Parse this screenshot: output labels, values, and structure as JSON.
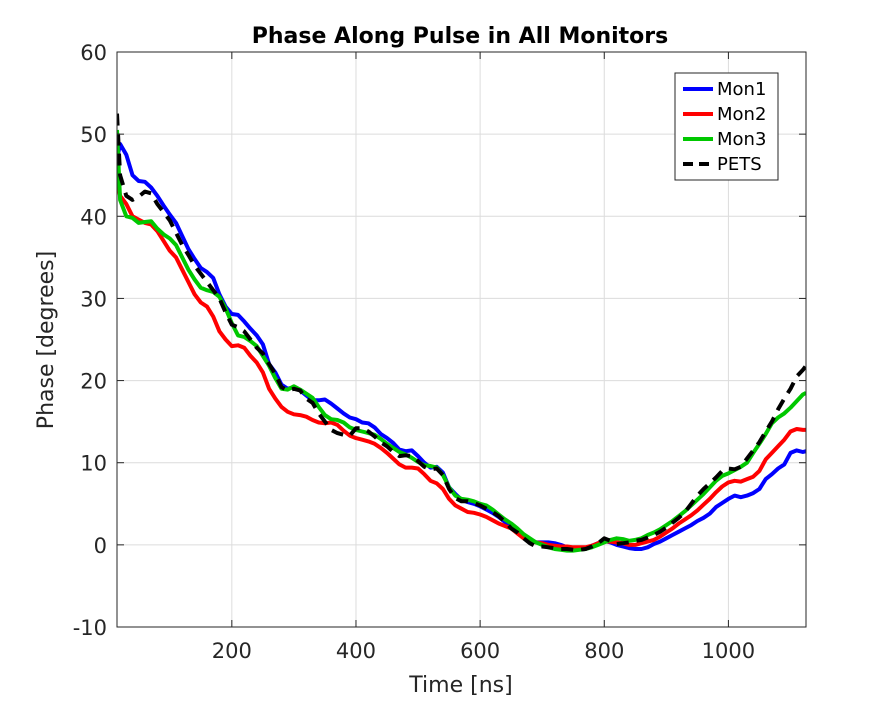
{
  "chart_data": {
    "type": "line",
    "title": "Phase Along Pulse in All Monitors",
    "xlabel": "Time [ns]",
    "ylabel": "Phase [degrees]",
    "xlim": [
      15,
      1125
    ],
    "ylim": [
      -10,
      60
    ],
    "xticks": [
      200,
      400,
      600,
      800,
      1000
    ],
    "yticks": [
      -10,
      0,
      10,
      20,
      30,
      40,
      50,
      60
    ],
    "grid": true,
    "legend_position": "top-right",
    "series": [
      {
        "name": "Mon1",
        "color": "#0000ff",
        "dash": "solid",
        "x": [
          15,
          20,
          30,
          40,
          50,
          60,
          70,
          80,
          90,
          100,
          110,
          120,
          130,
          140,
          150,
          160,
          170,
          180,
          190,
          200,
          210,
          220,
          230,
          240,
          250,
          260,
          270,
          280,
          290,
          300,
          310,
          320,
          330,
          340,
          350,
          360,
          370,
          380,
          390,
          400,
          410,
          420,
          430,
          440,
          450,
          460,
          470,
          480,
          490,
          500,
          510,
          520,
          530,
          540,
          550,
          560,
          570,
          580,
          590,
          600,
          610,
          620,
          630,
          640,
          650,
          660,
          670,
          680,
          690,
          700,
          710,
          720,
          730,
          740,
          750,
          760,
          770,
          780,
          790,
          800,
          810,
          820,
          830,
          840,
          850,
          860,
          870,
          880,
          890,
          900,
          910,
          920,
          930,
          940,
          950,
          960,
          970,
          980,
          990,
          1000,
          1010,
          1020,
          1030,
          1040,
          1050,
          1060,
          1070,
          1080,
          1090,
          1100,
          1110,
          1120,
          1125
        ],
        "y": [
          47.0,
          48.8,
          47.5,
          45.0,
          44.3,
          44.2,
          43.5,
          42.5,
          41.3,
          40.2,
          39.2,
          37.6,
          36.0,
          34.8,
          33.7,
          33.2,
          32.5,
          30.5,
          29.0,
          28.1,
          28.0,
          27.2,
          26.3,
          25.5,
          24.4,
          22.0,
          21.0,
          19.5,
          19.0,
          19.2,
          18.8,
          18.2,
          17.6,
          17.6,
          17.7,
          17.2,
          16.6,
          16.0,
          15.5,
          15.3,
          14.9,
          14.8,
          14.3,
          13.5,
          13.0,
          12.4,
          11.6,
          11.4,
          11.5,
          10.8,
          10.0,
          9.4,
          9.5,
          8.8,
          7.0,
          6.2,
          5.5,
          5.2,
          5.0,
          4.7,
          4.3,
          3.9,
          3.4,
          2.8,
          2.2,
          1.8,
          1.2,
          0.7,
          0.3,
          0.3,
          0.3,
          0.2,
          0.0,
          -0.3,
          -0.5,
          -0.5,
          -0.4,
          -0.1,
          0.2,
          0.5,
          0.3,
          0.0,
          -0.2,
          -0.4,
          -0.5,
          -0.5,
          -0.3,
          0.1,
          0.4,
          0.8,
          1.2,
          1.6,
          2.0,
          2.4,
          2.9,
          3.3,
          3.8,
          4.6,
          5.1,
          5.6,
          6.0,
          5.8,
          6.0,
          6.3,
          6.8,
          8.0,
          8.6,
          9.3,
          9.8,
          11.2,
          11.5,
          11.3,
          11.4
        ]
      },
      {
        "name": "Mon2",
        "color": "#ff0000",
        "dash": "solid",
        "x": [
          15,
          20,
          30,
          40,
          50,
          60,
          70,
          80,
          90,
          100,
          110,
          120,
          130,
          140,
          150,
          160,
          170,
          180,
          190,
          200,
          210,
          220,
          230,
          240,
          250,
          260,
          270,
          280,
          290,
          300,
          310,
          320,
          330,
          340,
          350,
          360,
          370,
          380,
          390,
          400,
          410,
          420,
          430,
          440,
          450,
          460,
          470,
          480,
          490,
          500,
          510,
          520,
          530,
          540,
          550,
          560,
          570,
          580,
          590,
          600,
          610,
          620,
          630,
          640,
          650,
          660,
          670,
          680,
          690,
          700,
          710,
          720,
          730,
          740,
          750,
          760,
          770,
          780,
          790,
          800,
          810,
          820,
          830,
          840,
          850,
          860,
          870,
          880,
          890,
          900,
          910,
          920,
          930,
          940,
          950,
          960,
          970,
          980,
          990,
          1000,
          1010,
          1020,
          1030,
          1040,
          1050,
          1060,
          1070,
          1080,
          1090,
          1100,
          1110,
          1120,
          1125
        ],
        "y": [
          44.5,
          42.5,
          41.5,
          40.0,
          39.6,
          39.2,
          39.0,
          38.2,
          37.0,
          35.8,
          35.0,
          33.5,
          32.0,
          30.5,
          29.5,
          29.0,
          27.8,
          26.0,
          25.0,
          24.2,
          24.3,
          24.0,
          23.0,
          22.2,
          21.0,
          19.0,
          17.8,
          16.8,
          16.2,
          15.9,
          15.8,
          15.6,
          15.2,
          14.9,
          14.8,
          14.9,
          14.6,
          13.9,
          13.3,
          13.0,
          12.8,
          12.6,
          12.3,
          11.8,
          11.2,
          10.5,
          9.8,
          9.4,
          9.4,
          9.3,
          8.6,
          7.8,
          7.5,
          6.8,
          5.6,
          4.8,
          4.4,
          4.0,
          3.9,
          3.7,
          3.4,
          3.0,
          2.6,
          2.3,
          2.0,
          1.4,
          0.8,
          0.5,
          0.3,
          0.2,
          0.0,
          -0.1,
          -0.2,
          -0.2,
          -0.3,
          -0.3,
          -0.3,
          -0.1,
          0.2,
          0.4,
          0.4,
          0.3,
          0.2,
          0.0,
          0.0,
          0.2,
          0.4,
          0.6,
          1.0,
          1.5,
          2.0,
          2.6,
          3.1,
          3.6,
          4.2,
          4.9,
          5.6,
          6.4,
          7.1,
          7.6,
          7.8,
          7.7,
          8.0,
          8.3,
          9.0,
          10.4,
          11.2,
          12.0,
          12.8,
          13.8,
          14.1,
          14.0,
          14.0
        ]
      },
      {
        "name": "Mon3",
        "color": "#00c800",
        "dash": "solid",
        "x": [
          15,
          20,
          30,
          40,
          50,
          60,
          70,
          80,
          90,
          100,
          110,
          120,
          130,
          140,
          150,
          160,
          170,
          180,
          190,
          200,
          210,
          220,
          230,
          240,
          250,
          260,
          270,
          280,
          290,
          300,
          310,
          320,
          330,
          340,
          350,
          360,
          370,
          380,
          390,
          400,
          410,
          420,
          430,
          440,
          450,
          460,
          470,
          480,
          490,
          500,
          510,
          520,
          530,
          540,
          550,
          560,
          570,
          580,
          590,
          600,
          610,
          620,
          630,
          640,
          650,
          660,
          670,
          680,
          690,
          700,
          710,
          720,
          730,
          740,
          750,
          760,
          770,
          780,
          790,
          800,
          810,
          820,
          830,
          840,
          850,
          860,
          870,
          880,
          890,
          900,
          910,
          920,
          930,
          940,
          950,
          960,
          970,
          980,
          990,
          1000,
          1010,
          1020,
          1030,
          1040,
          1050,
          1060,
          1070,
          1080,
          1090,
          1100,
          1110,
          1120,
          1125
        ],
        "y": [
          50.5,
          42.0,
          40.0,
          39.8,
          39.2,
          39.3,
          39.4,
          38.5,
          37.8,
          37.3,
          36.5,
          35.0,
          33.5,
          32.3,
          31.3,
          31.0,
          30.8,
          30.2,
          28.8,
          27.0,
          25.5,
          25.3,
          24.8,
          24.2,
          23.0,
          21.8,
          20.3,
          19.0,
          18.9,
          19.3,
          18.9,
          18.4,
          17.9,
          16.8,
          15.8,
          15.3,
          15.2,
          14.9,
          14.3,
          14.0,
          13.8,
          13.6,
          13.4,
          12.9,
          12.3,
          11.8,
          11.3,
          11.0,
          10.6,
          10.1,
          9.7,
          9.6,
          9.4,
          8.5,
          7.0,
          6.0,
          5.6,
          5.5,
          5.3,
          5.0,
          4.8,
          4.3,
          3.7,
          3.1,
          2.6,
          2.0,
          1.3,
          0.8,
          0.3,
          0.0,
          -0.3,
          -0.5,
          -0.6,
          -0.7,
          -0.7,
          -0.6,
          -0.5,
          -0.3,
          0.0,
          0.3,
          0.6,
          0.8,
          0.7,
          0.5,
          0.6,
          0.8,
          1.2,
          1.5,
          1.9,
          2.4,
          2.9,
          3.5,
          4.1,
          4.8,
          5.5,
          6.2,
          7.0,
          7.8,
          8.4,
          8.7,
          9.1,
          9.5,
          10.0,
          11.2,
          12.3,
          13.5,
          14.8,
          15.5,
          16.0,
          16.7,
          17.5,
          18.3,
          18.5
        ]
      },
      {
        "name": "PETS",
        "color": "#000000",
        "dash": "dashed",
        "x": [
          15,
          20,
          30,
          40,
          50,
          60,
          70,
          80,
          90,
          100,
          110,
          120,
          130,
          140,
          150,
          160,
          170,
          180,
          190,
          200,
          210,
          220,
          230,
          240,
          250,
          260,
          270,
          280,
          290,
          300,
          310,
          320,
          330,
          340,
          350,
          360,
          370,
          380,
          390,
          400,
          410,
          420,
          430,
          440,
          450,
          460,
          470,
          480,
          490,
          500,
          510,
          520,
          530,
          540,
          550,
          560,
          570,
          580,
          590,
          600,
          610,
          620,
          630,
          640,
          650,
          660,
          670,
          680,
          690,
          700,
          710,
          720,
          730,
          740,
          750,
          760,
          770,
          780,
          790,
          800,
          810,
          820,
          830,
          840,
          850,
          860,
          870,
          880,
          890,
          900,
          910,
          920,
          930,
          940,
          950,
          960,
          970,
          980,
          990,
          1000,
          1010,
          1020,
          1030,
          1040,
          1050,
          1060,
          1070,
          1080,
          1090,
          1100,
          1110,
          1120,
          1125
        ],
        "y": [
          52.5,
          45.0,
          42.5,
          42.0,
          42.4,
          43.0,
          42.8,
          41.5,
          40.5,
          39.5,
          38.0,
          36.5,
          35.3,
          34.0,
          33.0,
          32.0,
          31.0,
          30.0,
          28.3,
          26.8,
          26.5,
          26.0,
          25.0,
          24.0,
          23.3,
          22.0,
          20.8,
          19.2,
          18.8,
          19.0,
          18.8,
          17.8,
          17.3,
          16.0,
          15.0,
          14.0,
          13.6,
          13.4,
          13.3,
          14.2,
          14.2,
          13.8,
          13.2,
          12.5,
          12.0,
          11.3,
          10.8,
          10.9,
          10.8,
          10.2,
          9.5,
          9.2,
          9.3,
          8.5,
          6.8,
          5.7,
          5.3,
          5.3,
          5.1,
          4.8,
          4.4,
          4.0,
          3.5,
          2.8,
          2.0,
          1.5,
          0.8,
          0.2,
          -0.2,
          -0.2,
          -0.3,
          -0.4,
          -0.5,
          -0.5,
          -0.6,
          -0.6,
          -0.5,
          -0.2,
          0.2,
          0.8,
          0.5,
          0.1,
          0.2,
          0.3,
          0.5,
          0.6,
          0.9,
          1.2,
          1.6,
          2.1,
          2.7,
          3.3,
          4.0,
          5.0,
          6.0,
          6.8,
          7.5,
          8.2,
          9.0,
          9.3,
          9.2,
          9.5,
          10.5,
          11.5,
          12.5,
          13.8,
          15.0,
          16.5,
          17.8,
          19.0,
          20.5,
          21.3,
          21.8
        ]
      }
    ]
  }
}
